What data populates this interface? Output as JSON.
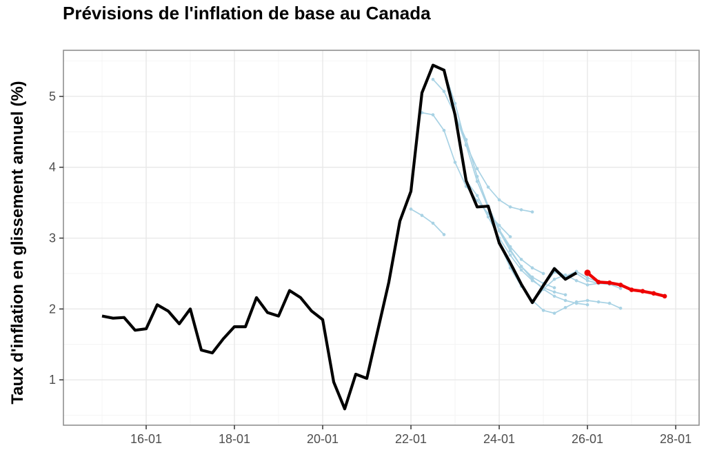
{
  "header": {
    "title": "Prévisions de l'inflation de base au Canada"
  },
  "colors": {
    "history": "#000000",
    "past_forecasts": "#a8d2e4",
    "current_forecast": "#ee0000",
    "tick_text": "#4d4d4d",
    "tick_mark": "#333333",
    "grid_major": "#e8e8e8",
    "grid_minor": "#f4f4f4",
    "panel_border": "#8f8f8f",
    "background": "#ffffff"
  },
  "chart_data": {
    "type": "line",
    "title": "Prévisions de l'inflation de base au Canada",
    "xlabel": "",
    "ylabel": "Taux d'inflation en glissement annuel (%)",
    "xlim": [
      2014.125,
      2028.53
    ],
    "ylim": [
      0.36,
      5.65
    ],
    "grid": true,
    "legend": "none",
    "step_years": 0.25,
    "x_major_ticks_years": [
      2016,
      2018,
      2020,
      2022,
      2024,
      2026,
      2028
    ],
    "x_tick_labels": [
      "16-01",
      "18-01",
      "20-01",
      "22-01",
      "24-01",
      "26-01",
      "28-01"
    ],
    "x_minor_ticks_years": [
      2015,
      2017,
      2019,
      2021,
      2023,
      2025,
      2027
    ],
    "y_ticks": [
      1,
      2,
      3,
      4,
      5
    ],
    "y_tick_labels": [
      "1",
      "2",
      "3",
      "4",
      "5"
    ],
    "y_minor_ticks": [
      0.5,
      1.5,
      2.5,
      3.5,
      4.5,
      5.5
    ],
    "series": [
      {
        "name": "inflation-observee",
        "role": "history",
        "color_key": "history",
        "markers": false,
        "start": 2015.0,
        "values": [
          1.9,
          1.87,
          1.88,
          1.7,
          1.72,
          2.06,
          1.97,
          1.79,
          2.0,
          1.42,
          1.38,
          1.58,
          1.75,
          1.75,
          2.16,
          1.95,
          1.9,
          2.26,
          2.16,
          1.97,
          1.85,
          0.97,
          0.59,
          1.08,
          1.02,
          1.7,
          2.38,
          3.24,
          3.66,
          5.05,
          5.44,
          5.37,
          4.74,
          3.81,
          3.44,
          3.45,
          2.93,
          2.65,
          2.35,
          2.09,
          2.33,
          2.57,
          2.42,
          2.51
        ]
      },
      {
        "name": "prevision-anterieure-2022T1",
        "role": "past_forecast",
        "color_key": "past_forecasts",
        "markers": true,
        "start": 2022.0,
        "values": [
          3.41,
          3.32,
          3.21,
          3.05
        ]
      },
      {
        "name": "prevision-anterieure-2022T2",
        "role": "past_forecast",
        "color_key": "past_forecasts",
        "markers": true,
        "start": 2022.25,
        "values": [
          4.77,
          4.74,
          4.52,
          4.07,
          3.73,
          3.53,
          3.35,
          3.18,
          3.02
        ]
      },
      {
        "name": "prevision-anterieure-2022T3",
        "role": "past_forecast",
        "color_key": "past_forecasts",
        "markers": true,
        "start": 2022.5,
        "values": [
          5.24,
          5.07,
          4.74,
          4.32,
          3.98,
          3.72,
          3.54,
          3.44,
          3.4,
          3.37
        ]
      },
      {
        "name": "prevision-anterieure-2022T4",
        "role": "past_forecast",
        "color_key": "past_forecasts",
        "markers": true,
        "start": 2022.75,
        "values": [
          5.37,
          4.9,
          4.31,
          3.8,
          3.43,
          3.12,
          2.88,
          2.7,
          2.58,
          2.5
        ]
      },
      {
        "name": "prevision-anterieure-2023T1",
        "role": "past_forecast",
        "color_key": "past_forecasts",
        "markers": true,
        "start": 2023.0,
        "values": [
          4.74,
          4.39,
          3.87,
          3.45,
          3.1,
          2.82,
          2.6,
          2.45,
          2.36,
          2.3
        ]
      },
      {
        "name": "prevision-anterieure-2023T2",
        "role": "past_forecast",
        "color_key": "past_forecasts",
        "markers": true,
        "start": 2023.25,
        "values": [
          3.81,
          3.6,
          3.3,
          3.0,
          2.76,
          2.55,
          2.4,
          2.3,
          2.24,
          2.2
        ]
      },
      {
        "name": "prevision-anterieure-2023T4",
        "role": "past_forecast",
        "color_key": "past_forecasts",
        "markers": true,
        "start": 2023.75,
        "values": [
          3.45,
          3.12,
          2.84,
          2.6,
          2.42,
          2.28,
          2.18,
          2.12,
          2.08,
          2.06
        ]
      },
      {
        "name": "prevision-anterieure-2024T1",
        "role": "past_forecast",
        "color_key": "past_forecasts",
        "markers": true,
        "start": 2024.0,
        "values": [
          2.93,
          2.58,
          2.32,
          2.12,
          1.98,
          1.94,
          2.02,
          2.1,
          2.12,
          2.1,
          2.08,
          2.01
        ]
      },
      {
        "name": "prevision-anterieure-2024T4",
        "role": "past_forecast",
        "color_key": "past_forecasts",
        "markers": true,
        "start": 2024.75,
        "values": [
          2.09,
          2.28,
          2.42,
          2.48,
          2.4,
          2.34,
          2.36,
          2.35,
          2.29
        ]
      },
      {
        "name": "prevision-anterieure-2025T1",
        "role": "past_forecast",
        "color_key": "past_forecasts",
        "markers": true,
        "start": 2025.0,
        "values": [
          2.33,
          2.52,
          2.45,
          2.5,
          2.4,
          2.36,
          2.35
        ]
      },
      {
        "name": "prevision-anterieure-2025T2",
        "role": "past_forecast",
        "color_key": "past_forecasts",
        "markers": true,
        "start": 2025.25,
        "values": [
          2.57,
          2.46,
          2.53,
          2.44,
          2.38,
          2.37
        ]
      },
      {
        "name": "prevision-actuelle",
        "role": "current_forecast",
        "color_key": "current_forecast",
        "markers": true,
        "start": 2026.0,
        "values": [
          2.51,
          2.38,
          2.37,
          2.34,
          2.27,
          2.25,
          2.22,
          2.18
        ]
      }
    ]
  }
}
